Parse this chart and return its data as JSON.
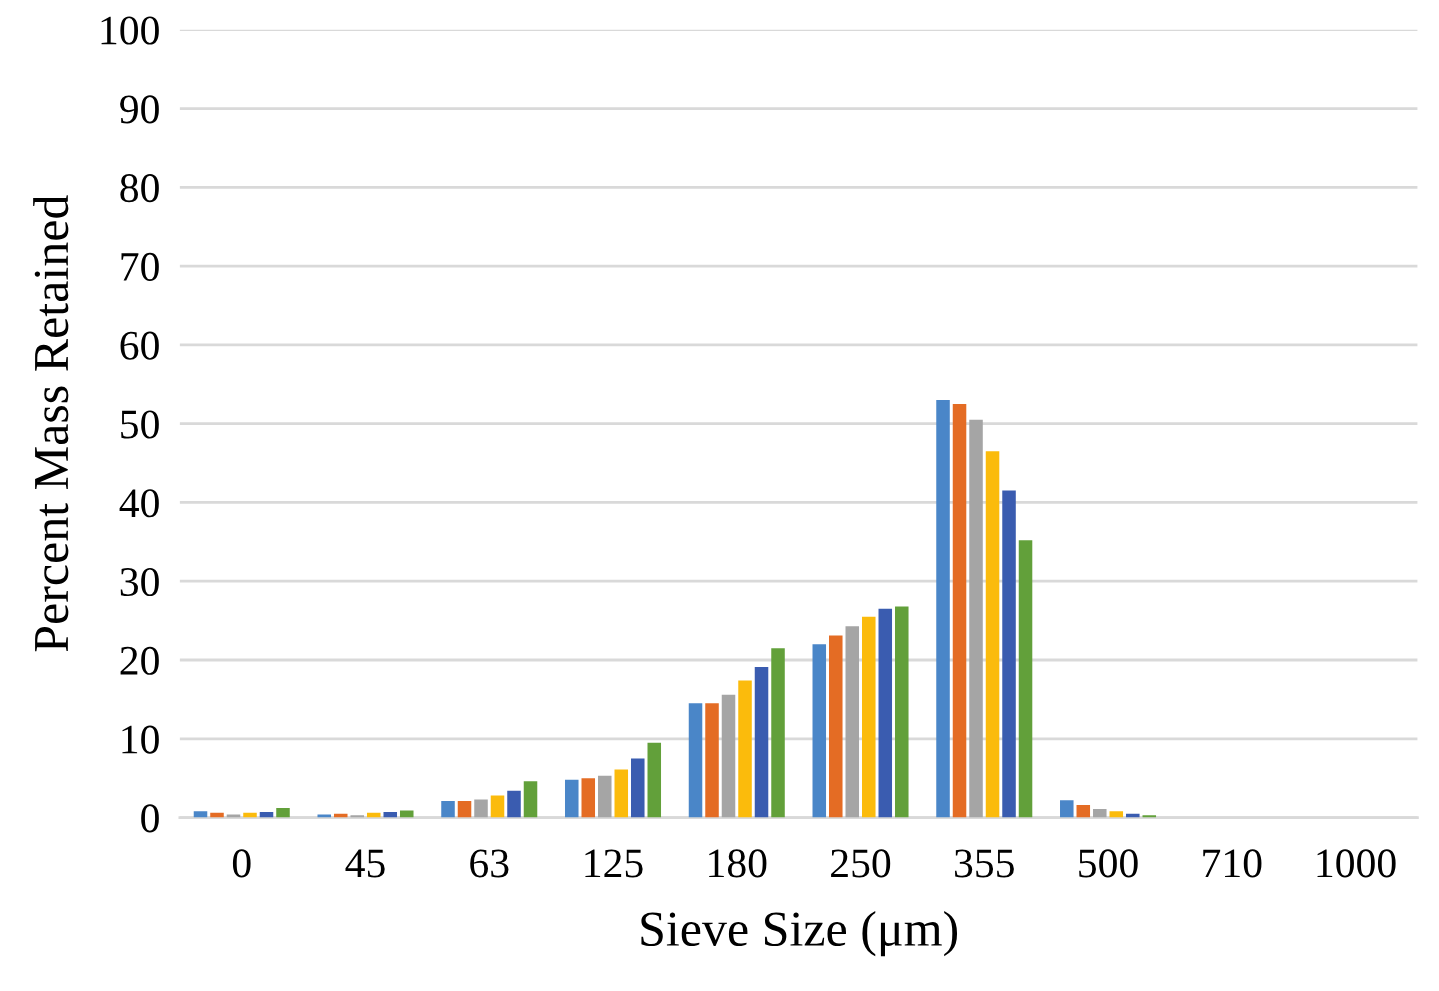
{
  "chart_data": {
    "type": "bar",
    "xlabel": "Sieve Size (μm)",
    "ylabel": "Percent Mass Retained",
    "categories": [
      "0",
      "45",
      "63",
      "125",
      "180",
      "250",
      "355",
      "500",
      "710",
      "1000"
    ],
    "series": [
      {
        "color": "#4a86c8",
        "values": [
          0.8,
          0.4,
          2.1,
          4.8,
          14.5,
          22.0,
          53.0,
          2.2,
          0,
          0
        ]
      },
      {
        "color": "#e46c24",
        "values": [
          0.6,
          0.5,
          2.1,
          5.0,
          14.5,
          23.1,
          52.5,
          1.6,
          0,
          0
        ]
      },
      {
        "color": "#a5a5a5",
        "values": [
          0.4,
          0.3,
          2.3,
          5.3,
          15.6,
          24.3,
          50.5,
          1.1,
          0,
          0
        ]
      },
      {
        "color": "#fbbb0c",
        "values": [
          0.6,
          0.6,
          2.8,
          6.1,
          17.4,
          25.5,
          46.5,
          0.8,
          0,
          0
        ]
      },
      {
        "color": "#3a5cb0",
        "values": [
          0.7,
          0.7,
          3.4,
          7.5,
          19.1,
          26.5,
          41.5,
          0.5,
          0,
          0
        ]
      },
      {
        "color": "#62a03a",
        "values": [
          1.2,
          0.9,
          4.6,
          9.5,
          21.5,
          26.8,
          35.2,
          0.3,
          0,
          0
        ]
      }
    ],
    "ylim": [
      0,
      100
    ],
    "yticks": [
      0,
      10,
      20,
      30,
      40,
      50,
      60,
      70,
      80,
      90,
      100
    ],
    "grid": "y"
  }
}
